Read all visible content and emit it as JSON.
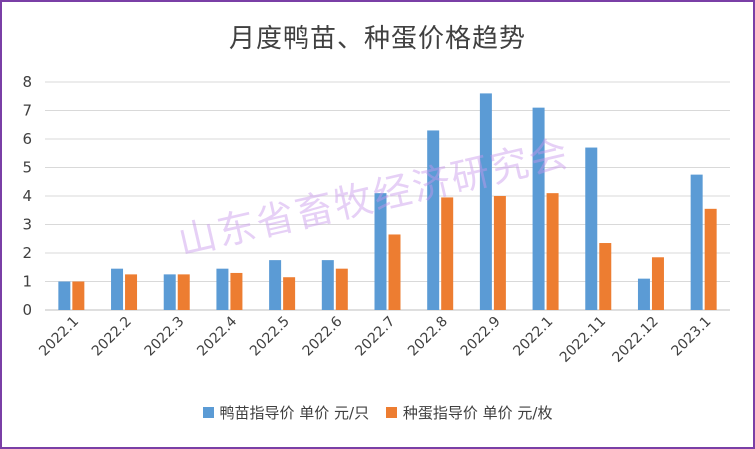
{
  "chart_data": {
    "type": "bar",
    "title": "月度鸭苗、种蛋价格趋势",
    "categories": [
      "2022.1",
      "2022.2",
      "2022.3",
      "2022.4",
      "2022.5",
      "2022.6",
      "2022.7",
      "2022.8",
      "2022.9",
      "2022.1",
      "2022.11",
      "2022.12",
      "2023.1"
    ],
    "series": [
      {
        "name": "鸭苗指导价 单价 元/只",
        "color": "#5b9bd5",
        "values": [
          1.0,
          1.45,
          1.25,
          1.45,
          1.75,
          1.75,
          4.1,
          6.3,
          7.6,
          7.1,
          5.7,
          1.1,
          4.75
        ]
      },
      {
        "name": "种蛋指导价 单价 元/枚",
        "color": "#ed7d31",
        "values": [
          1.0,
          1.25,
          1.25,
          1.3,
          1.15,
          1.45,
          2.65,
          3.95,
          4.0,
          4.1,
          2.35,
          1.85,
          3.55
        ]
      }
    ],
    "ylim": [
      0,
      8
    ],
    "yticks": [
      0,
      1,
      2,
      3,
      4,
      5,
      6,
      7,
      8
    ],
    "grid": true,
    "legend_position": "bottom"
  },
  "watermark": "山东省畜牧经济研究会"
}
